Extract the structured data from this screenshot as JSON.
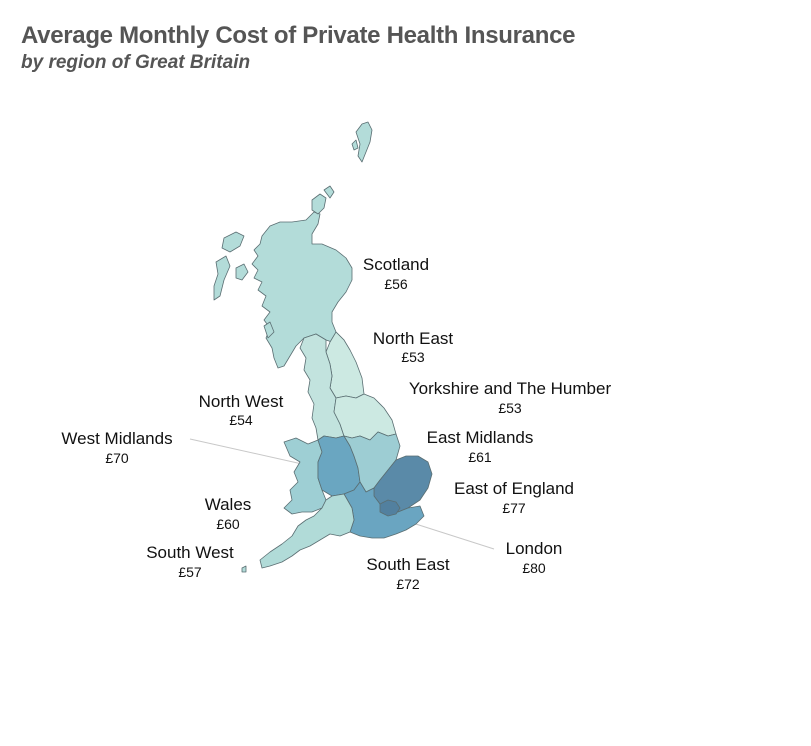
{
  "title": "Average Monthly Cost of Private Health Insurance",
  "subtitle": "by region of Great Britain",
  "color_scale": {
    "low": "#cfe9e3",
    "mid": "#a8d6d4",
    "high": "#5b89a6"
  },
  "regions": [
    {
      "id": "scotland",
      "name": "Scotland",
      "value_label": "£56",
      "value": 56,
      "color": "#b3dcd9"
    },
    {
      "id": "north-east",
      "name": "North East",
      "value_label": "£53",
      "value": 53,
      "color": "#cce9e2"
    },
    {
      "id": "yorkshire",
      "name": "Yorkshire and The Humber",
      "value_label": "£53",
      "value": 53,
      "color": "#cce9e2"
    },
    {
      "id": "north-west",
      "name": "North West",
      "value_label": "£54",
      "value": 54,
      "color": "#c2e3de"
    },
    {
      "id": "east-midlands",
      "name": "East Midlands",
      "value_label": "£61",
      "value": 61,
      "color": "#9dcdd3"
    },
    {
      "id": "west-midlands",
      "name": "West Midlands",
      "value_label": "£70",
      "value": 70,
      "color": "#6aa6c1"
    },
    {
      "id": "wales",
      "name": "Wales",
      "value_label": "£60",
      "value": 60,
      "color": "#9ecfd4"
    },
    {
      "id": "east-of-england",
      "name": "East of England",
      "value_label": "£77",
      "value": 77,
      "color": "#5a8aa8"
    },
    {
      "id": "london",
      "name": "London",
      "value_label": "£80",
      "value": 80,
      "color": "#52809f"
    },
    {
      "id": "south-east",
      "name": "South East",
      "value_label": "£72",
      "value": 72,
      "color": "#6aa5c1"
    },
    {
      "id": "south-west",
      "name": "South West",
      "value_label": "£57",
      "value": 57,
      "color": "#b1dbd8"
    }
  ]
}
